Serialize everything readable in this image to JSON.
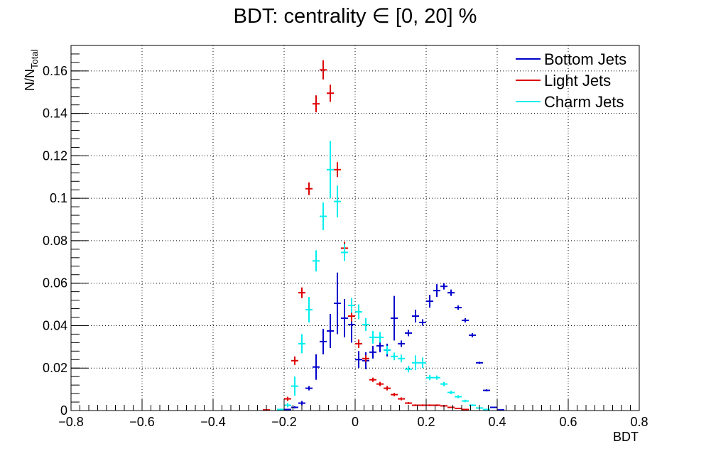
{
  "chart_data": {
    "type": "scatter",
    "style": "histogram-error-bars",
    "title": "BDT: centrality ∈ [0, 20] %",
    "xlabel": "BDT",
    "ylabel_main": "N/N",
    "ylabel_sub": "Total",
    "xlim": [
      -0.8,
      0.8
    ],
    "ylim": [
      0,
      0.172
    ],
    "bin_width": 0.02,
    "x_ticks": [
      {
        "v": -0.8,
        "label": "−0.8"
      },
      {
        "v": -0.6,
        "label": "−0.6"
      },
      {
        "v": -0.4,
        "label": "−0.4"
      },
      {
        "v": -0.2,
        "label": "−0.2"
      },
      {
        "v": 0,
        "label": "0"
      },
      {
        "v": 0.2,
        "label": "0.2"
      },
      {
        "v": 0.4,
        "label": "0.4"
      },
      {
        "v": 0.6,
        "label": "0.6"
      },
      {
        "v": 0.8,
        "label": "0.8"
      }
    ],
    "y_ticks": [
      {
        "v": 0,
        "label": "0"
      },
      {
        "v": 0.02,
        "label": "0.02"
      },
      {
        "v": 0.04,
        "label": "0.04"
      },
      {
        "v": 0.06,
        "label": "0.06"
      },
      {
        "v": 0.08,
        "label": "0.08"
      },
      {
        "v": 0.1,
        "label": "0.1"
      },
      {
        "v": 0.12,
        "label": "0.12"
      },
      {
        "v": 0.14,
        "label": "0.14"
      },
      {
        "v": 0.16,
        "label": "0.16"
      }
    ],
    "grid": true,
    "legend_position": "top-right",
    "series": [
      {
        "name": "Bottom Jets",
        "color": "#0000cc",
        "points": [
          {
            "x": -0.19,
            "y": 0.0005,
            "err": 0.0003
          },
          {
            "x": -0.17,
            "y": 0.0015,
            "err": 0.0005
          },
          {
            "x": -0.15,
            "y": 0.0035,
            "err": 0.001
          },
          {
            "x": -0.13,
            "y": 0.0105,
            "err": 0.001
          },
          {
            "x": -0.11,
            "y": 0.0205,
            "err": 0.006
          },
          {
            "x": -0.09,
            "y": 0.0325,
            "err": 0.006
          },
          {
            "x": -0.07,
            "y": 0.0375,
            "err": 0.008
          },
          {
            "x": -0.05,
            "y": 0.0505,
            "err": 0.0145
          },
          {
            "x": -0.03,
            "y": 0.0435,
            "err": 0.009
          },
          {
            "x": -0.01,
            "y": 0.0405,
            "err": 0.0085
          },
          {
            "x": 0.01,
            "y": 0.024,
            "err": 0.004
          },
          {
            "x": 0.03,
            "y": 0.0235,
            "err": 0.004
          },
          {
            "x": 0.05,
            "y": 0.0275,
            "err": 0.003
          },
          {
            "x": 0.07,
            "y": 0.0305,
            "err": 0.003
          },
          {
            "x": 0.09,
            "y": 0.0285,
            "err": 0.003
          },
          {
            "x": 0.11,
            "y": 0.0435,
            "err": 0.0105
          },
          {
            "x": 0.13,
            "y": 0.0315,
            "err": 0.0015
          },
          {
            "x": 0.15,
            "y": 0.0365,
            "err": 0.0015
          },
          {
            "x": 0.17,
            "y": 0.0445,
            "err": 0.003
          },
          {
            "x": 0.19,
            "y": 0.0415,
            "err": 0.0015
          },
          {
            "x": 0.21,
            "y": 0.0515,
            "err": 0.003
          },
          {
            "x": 0.23,
            "y": 0.0565,
            "err": 0.003
          },
          {
            "x": 0.25,
            "y": 0.0585,
            "err": 0.0015
          },
          {
            "x": 0.27,
            "y": 0.0555,
            "err": 0.0015
          },
          {
            "x": 0.29,
            "y": 0.0485,
            "err": 0.001
          },
          {
            "x": 0.31,
            "y": 0.0425,
            "err": 0.001
          },
          {
            "x": 0.33,
            "y": 0.0355,
            "err": 0.001
          },
          {
            "x": 0.35,
            "y": 0.0225,
            "err": 0.0005
          },
          {
            "x": 0.37,
            "y": 0.0095,
            "err": 0.0005
          },
          {
            "x": 0.39,
            "y": 0.0015,
            "err": 0.0003
          },
          {
            "x": 0.41,
            "y": 0.0003,
            "err": 0.0002
          }
        ]
      },
      {
        "name": "Light Jets",
        "color": "#dd0000",
        "points": [
          {
            "x": -0.25,
            "y": 0.0003,
            "err": 0.0002
          },
          {
            "x": -0.19,
            "y": 0.0055,
            "err": 0.001
          },
          {
            "x": -0.17,
            "y": 0.0235,
            "err": 0.002
          },
          {
            "x": -0.15,
            "y": 0.0555,
            "err": 0.0025
          },
          {
            "x": -0.13,
            "y": 0.1045,
            "err": 0.003
          },
          {
            "x": -0.11,
            "y": 0.1445,
            "err": 0.004
          },
          {
            "x": -0.09,
            "y": 0.1605,
            "err": 0.0045
          },
          {
            "x": -0.07,
            "y": 0.1495,
            "err": 0.004
          },
          {
            "x": -0.05,
            "y": 0.1135,
            "err": 0.0035
          },
          {
            "x": -0.03,
            "y": 0.0765,
            "err": 0.003
          },
          {
            "x": -0.01,
            "y": 0.0445,
            "err": 0.0025
          },
          {
            "x": 0.01,
            "y": 0.0315,
            "err": 0.002
          },
          {
            "x": 0.03,
            "y": 0.0245,
            "err": 0.0015
          },
          {
            "x": 0.05,
            "y": 0.0145,
            "err": 0.001
          },
          {
            "x": 0.07,
            "y": 0.0125,
            "err": 0.001
          },
          {
            "x": 0.09,
            "y": 0.0105,
            "err": 0.001
          },
          {
            "x": 0.11,
            "y": 0.0075,
            "err": 0.0008
          },
          {
            "x": 0.13,
            "y": 0.0055,
            "err": 0.0007
          },
          {
            "x": 0.15,
            "y": 0.0035,
            "err": 0.0005
          },
          {
            "x": 0.17,
            "y": 0.0025,
            "err": 0.0004
          },
          {
            "x": 0.19,
            "y": 0.0025,
            "err": 0.0004
          },
          {
            "x": 0.21,
            "y": 0.0025,
            "err": 0.0004
          },
          {
            "x": 0.23,
            "y": 0.0025,
            "err": 0.0004
          },
          {
            "x": 0.25,
            "y": 0.0022,
            "err": 0.0004
          },
          {
            "x": 0.27,
            "y": 0.0015,
            "err": 0.0003
          },
          {
            "x": 0.29,
            "y": 0.001,
            "err": 0.0003
          },
          {
            "x": 0.31,
            "y": 0.0005,
            "err": 0.0002
          }
        ]
      },
      {
        "name": "Charm Jets",
        "color": "#00eeee",
        "points": [
          {
            "x": -0.21,
            "y": 0.0005,
            "err": 0.0004
          },
          {
            "x": -0.19,
            "y": 0.0025,
            "err": 0.001
          },
          {
            "x": -0.17,
            "y": 0.0115,
            "err": 0.0045
          },
          {
            "x": -0.15,
            "y": 0.0315,
            "err": 0.0045
          },
          {
            "x": -0.13,
            "y": 0.0475,
            "err": 0.006
          },
          {
            "x": -0.11,
            "y": 0.0705,
            "err": 0.005
          },
          {
            "x": -0.09,
            "y": 0.0915,
            "err": 0.0065
          },
          {
            "x": -0.07,
            "y": 0.1135,
            "err": 0.0135
          },
          {
            "x": -0.05,
            "y": 0.0985,
            "err": 0.0075
          },
          {
            "x": -0.03,
            "y": 0.0745,
            "err": 0.004
          },
          {
            "x": -0.01,
            "y": 0.0495,
            "err": 0.0035
          },
          {
            "x": 0.01,
            "y": 0.0465,
            "err": 0.0035
          },
          {
            "x": 0.03,
            "y": 0.0405,
            "err": 0.003
          },
          {
            "x": 0.05,
            "y": 0.0345,
            "err": 0.003
          },
          {
            "x": 0.07,
            "y": 0.0345,
            "err": 0.0025
          },
          {
            "x": 0.09,
            "y": 0.0285,
            "err": 0.002
          },
          {
            "x": 0.11,
            "y": 0.0255,
            "err": 0.0018
          },
          {
            "x": 0.13,
            "y": 0.0245,
            "err": 0.0018
          },
          {
            "x": 0.15,
            "y": 0.0195,
            "err": 0.0015
          },
          {
            "x": 0.17,
            "y": 0.0225,
            "err": 0.0035
          },
          {
            "x": 0.19,
            "y": 0.0225,
            "err": 0.0025
          },
          {
            "x": 0.21,
            "y": 0.0155,
            "err": 0.0012
          },
          {
            "x": 0.23,
            "y": 0.0155,
            "err": 0.001
          },
          {
            "x": 0.25,
            "y": 0.0125,
            "err": 0.001
          },
          {
            "x": 0.27,
            "y": 0.0085,
            "err": 0.0008
          },
          {
            "x": 0.29,
            "y": 0.0065,
            "err": 0.0007
          },
          {
            "x": 0.31,
            "y": 0.0045,
            "err": 0.0006
          },
          {
            "x": 0.33,
            "y": 0.0025,
            "err": 0.0004
          },
          {
            "x": 0.35,
            "y": 0.0012,
            "err": 0.0003
          },
          {
            "x": 0.37,
            "y": 0.0005,
            "err": 0.0002
          }
        ]
      }
    ]
  }
}
